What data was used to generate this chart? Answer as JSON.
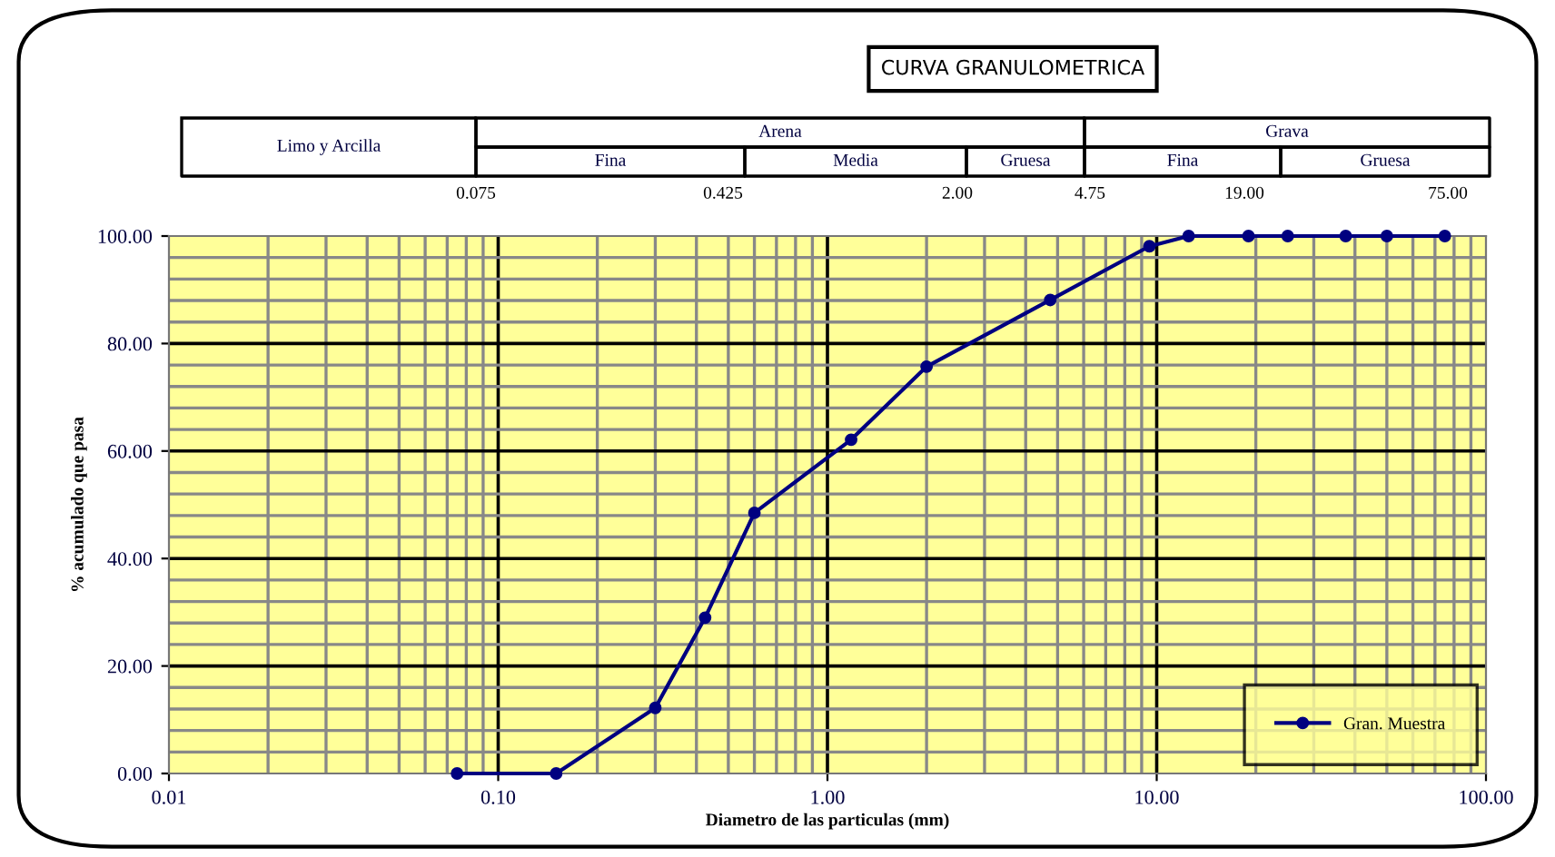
{
  "chart_data": {
    "type": "line",
    "title": "CURVA GRANULOMETRICA",
    "xlabel": "Diametro de las particulas (mm)",
    "ylabel": "% acumulado que pasa",
    "log": "x",
    "x": [
      0.075,
      0.15,
      0.3,
      0.425,
      0.6,
      1.18,
      2.0,
      4.75,
      9.5,
      12.5,
      19.0,
      25.0,
      37.5,
      50.0,
      75.0
    ],
    "series": [
      {
        "name": "Gran. Muestra",
        "color": "#000080",
        "values": [
          0,
          0,
          12.2,
          29.0,
          48.5,
          62.1,
          75.7,
          88.1,
          98.1,
          100,
          100,
          100,
          100,
          100,
          100
        ]
      }
    ],
    "xlim": [
      0.01,
      100
    ],
    "xticks": [
      {
        "value": 0.01,
        "label": "0.01"
      },
      {
        "value": 0.1,
        "label": "0.10"
      },
      {
        "value": 1,
        "label": "1.00"
      },
      {
        "value": 10,
        "label": "10.00"
      },
      {
        "value": 100,
        "label": "100.00"
      }
    ],
    "ylim": [
      0,
      100
    ],
    "yticks": [
      {
        "value": 0,
        "label": "0.00"
      },
      {
        "value": 20,
        "label": "20.00"
      },
      {
        "value": 40,
        "label": "40.00"
      },
      {
        "value": 60,
        "label": "60.00"
      },
      {
        "value": 80,
        "label": "80.00"
      },
      {
        "value": 100,
        "label": "100.00"
      }
    ],
    "grid": true,
    "legend": "bottom right",
    "marker": "circle",
    "line_style": "solid",
    "annotations": [
      "Limo y Arcilla",
      "Arena",
      "Fina",
      "Media",
      "Gruesa",
      "Grava",
      "Fina",
      "Gruesa",
      "0.075",
      "0.425",
      "2.00",
      "4.75",
      "19.00",
      "75.00"
    ]
  }
}
